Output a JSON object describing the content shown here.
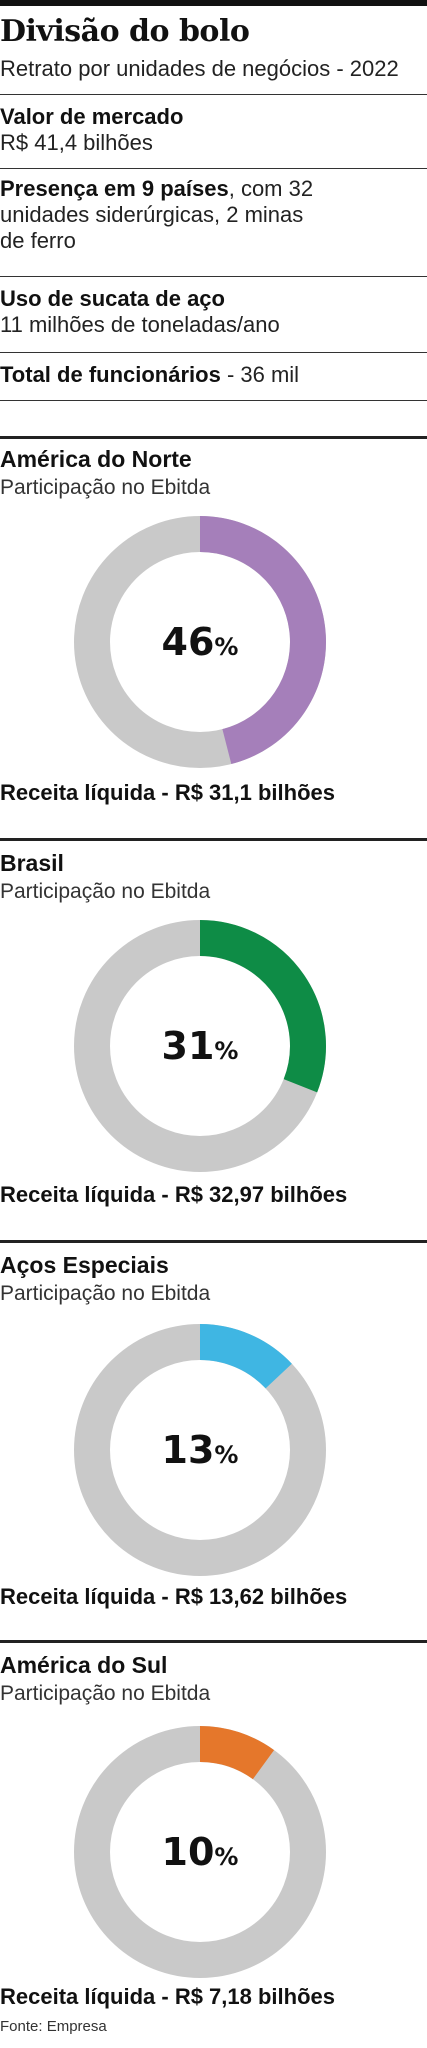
{
  "header": {
    "title": "Divisão do bolo",
    "subtitle": "Retrato por unidades de negócios - 2022"
  },
  "facts": [
    {
      "label": "Valor de mercado",
      "value": "R$ 41,4 bilhões"
    },
    {
      "label": "Presença em 9 países",
      "value": ", com 32",
      "value2": "unidades siderúrgicas, 2 minas",
      "value3": "de ferro"
    },
    {
      "label": "Uso de sucata de aço",
      "value": "11 milhões de toneladas/ano"
    },
    {
      "label": "Total de funcionários",
      "value": " - 36 mil"
    }
  ],
  "colors": {
    "track": "#c9c9c9",
    "america_do_norte": "#a57fba",
    "brasil": "#0e8c46",
    "acos_especiais": "#3fb6e3",
    "america_do_sul": "#e5772b"
  },
  "chart_data": [
    {
      "type": "pie",
      "variant": "donut",
      "title": "América do Norte",
      "subtitle": "Participação no Ebitda",
      "value": 46,
      "value_label": "46",
      "unit": "%",
      "color": "#a57fba",
      "footer": "Receita líquida - R$ 31,1 bilhões"
    },
    {
      "type": "pie",
      "variant": "donut",
      "title": "Brasil",
      "subtitle": "Participação no Ebitda",
      "value": 31,
      "value_label": "31",
      "unit": "%",
      "color": "#0e8c46",
      "footer": "Receita líquida - R$ 32,97 bilhões"
    },
    {
      "type": "pie",
      "variant": "donut",
      "title": "Aços Especiais",
      "subtitle": "Participação no Ebitda",
      "value": 13,
      "value_label": "13",
      "unit": "%",
      "color": "#3fb6e3",
      "footer": "Receita líquida - R$ 13,62 bilhões"
    },
    {
      "type": "pie",
      "variant": "donut",
      "title": "América do Sul",
      "subtitle": "Participação no Ebitda",
      "value": 10,
      "value_label": "10",
      "unit": "%",
      "color": "#e5772b",
      "footer": "Receita líquida - R$ 7,18 bilhões"
    }
  ],
  "source": "Fonte: Empresa"
}
